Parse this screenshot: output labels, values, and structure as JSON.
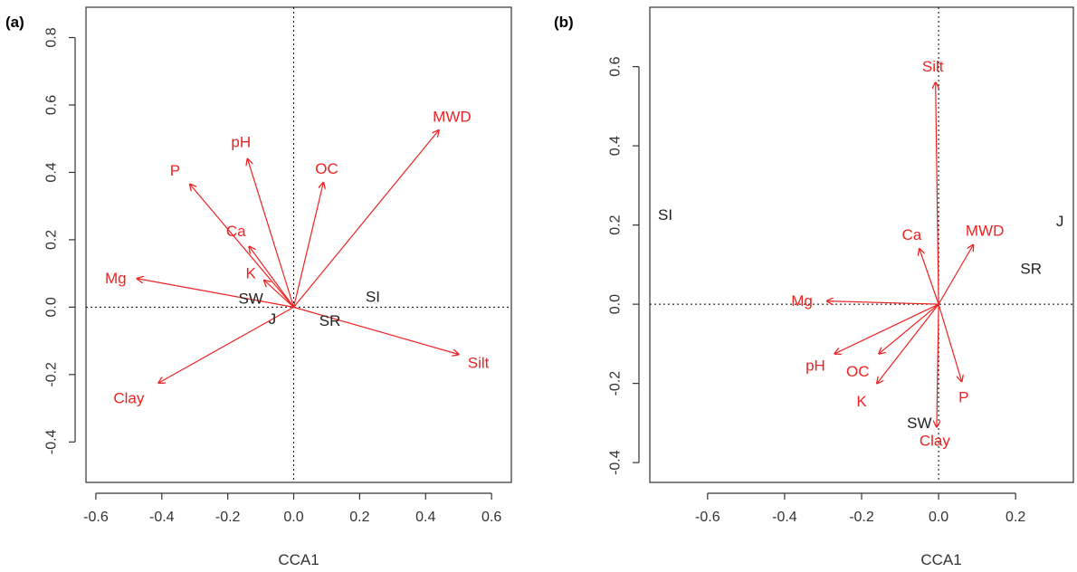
{
  "colors": {
    "vector": "#ee2222",
    "site": "#222222",
    "axis": "#333333"
  },
  "chart_data": [
    {
      "type": "scatter",
      "panel_label": "(a)",
      "xlabel": "CCA1",
      "ylabel": "",
      "xlim": [
        -0.63,
        0.66
      ],
      "ylim": [
        -0.52,
        0.89
      ],
      "xticks": [
        -0.6,
        -0.4,
        -0.2,
        0.0,
        0.2,
        0.4,
        0.6
      ],
      "yticks": [
        -0.4,
        -0.2,
        0.0,
        0.2,
        0.4,
        0.6,
        0.8
      ],
      "x_tick_labels": [
        "-0.6",
        "-0.4",
        "-0.2",
        "0.0",
        "0.2",
        "0.4",
        "0.6"
      ],
      "y_tick_labels": [
        "-0.4",
        "-0.2",
        "0.0",
        "0.2",
        "0.4",
        "0.6",
        "0.8"
      ],
      "vectors": [
        {
          "name": "MWD",
          "x": 0.44,
          "y": 0.525,
          "lx": 0.48,
          "ly": 0.565
        },
        {
          "name": "OC",
          "x": 0.09,
          "y": 0.37,
          "lx": 0.1,
          "ly": 0.41
        },
        {
          "name": "pH",
          "x": -0.14,
          "y": 0.44,
          "lx": -0.16,
          "ly": 0.49
        },
        {
          "name": "P",
          "x": -0.315,
          "y": 0.365,
          "lx": -0.36,
          "ly": 0.405
        },
        {
          "name": "Ca",
          "x": -0.135,
          "y": 0.18,
          "lx": -0.175,
          "ly": 0.225
        },
        {
          "name": "K",
          "x": -0.09,
          "y": 0.08,
          "lx": -0.13,
          "ly": 0.1
        },
        {
          "name": "Mg",
          "x": -0.475,
          "y": 0.085,
          "lx": -0.54,
          "ly": 0.085
        },
        {
          "name": "Clay",
          "x": -0.41,
          "y": -0.225,
          "lx": -0.5,
          "ly": -0.27
        },
        {
          "name": "Silt",
          "x": 0.5,
          "y": -0.14,
          "lx": 0.56,
          "ly": -0.165
        }
      ],
      "sites": [
        {
          "name": "SW",
          "x": -0.13,
          "y": 0.025
        },
        {
          "name": "SI",
          "x": 0.24,
          "y": 0.03
        },
        {
          "name": "J",
          "x": -0.065,
          "y": -0.035
        },
        {
          "name": "SR",
          "x": 0.11,
          "y": -0.04
        }
      ]
    },
    {
      "type": "scatter",
      "panel_label": "(b)",
      "xlabel": "CCA1",
      "ylabel": "",
      "xlim": [
        -0.75,
        0.35
      ],
      "ylim": [
        -0.45,
        0.75
      ],
      "xticks": [
        -0.6,
        -0.4,
        -0.2,
        0.0,
        0.2
      ],
      "yticks": [
        -0.4,
        -0.2,
        0.0,
        0.2,
        0.4,
        0.6
      ],
      "x_tick_labels": [
        "-0.6",
        "-0.4",
        "-0.2",
        "0.0",
        "0.2"
      ],
      "y_tick_labels": [
        "-0.4",
        "-0.2",
        "0.0",
        "0.2",
        "0.4",
        "0.6"
      ],
      "vectors": [
        {
          "name": "Silt",
          "x": -0.008,
          "y": 0.56,
          "lx": -0.015,
          "ly": 0.6
        },
        {
          "name": "MWD",
          "x": 0.09,
          "y": 0.15,
          "lx": 0.12,
          "ly": 0.185
        },
        {
          "name": "Ca",
          "x": -0.05,
          "y": 0.14,
          "lx": -0.07,
          "ly": 0.175
        },
        {
          "name": "Mg",
          "x": -0.29,
          "y": 0.008,
          "lx": -0.355,
          "ly": 0.008
        },
        {
          "name": "pH",
          "x": -0.27,
          "y": -0.125,
          "lx": -0.32,
          "ly": -0.155
        },
        {
          "name": "OC",
          "x": -0.155,
          "y": -0.125,
          "lx": -0.21,
          "ly": -0.17
        },
        {
          "name": "K",
          "x": -0.16,
          "y": -0.2,
          "lx": -0.2,
          "ly": -0.245
        },
        {
          "name": "P",
          "x": 0.06,
          "y": -0.195,
          "lx": 0.065,
          "ly": -0.235
        },
        {
          "name": "Clay",
          "x": -0.005,
          "y": -0.31,
          "lx": -0.01,
          "ly": -0.345
        }
      ],
      "sites": [
        {
          "name": "SI",
          "x": -0.71,
          "y": 0.225
        },
        {
          "name": "J",
          "x": 0.315,
          "y": 0.21
        },
        {
          "name": "SR",
          "x": 0.24,
          "y": 0.09
        },
        {
          "name": "SW",
          "x": -0.05,
          "y": -0.3
        }
      ]
    }
  ]
}
